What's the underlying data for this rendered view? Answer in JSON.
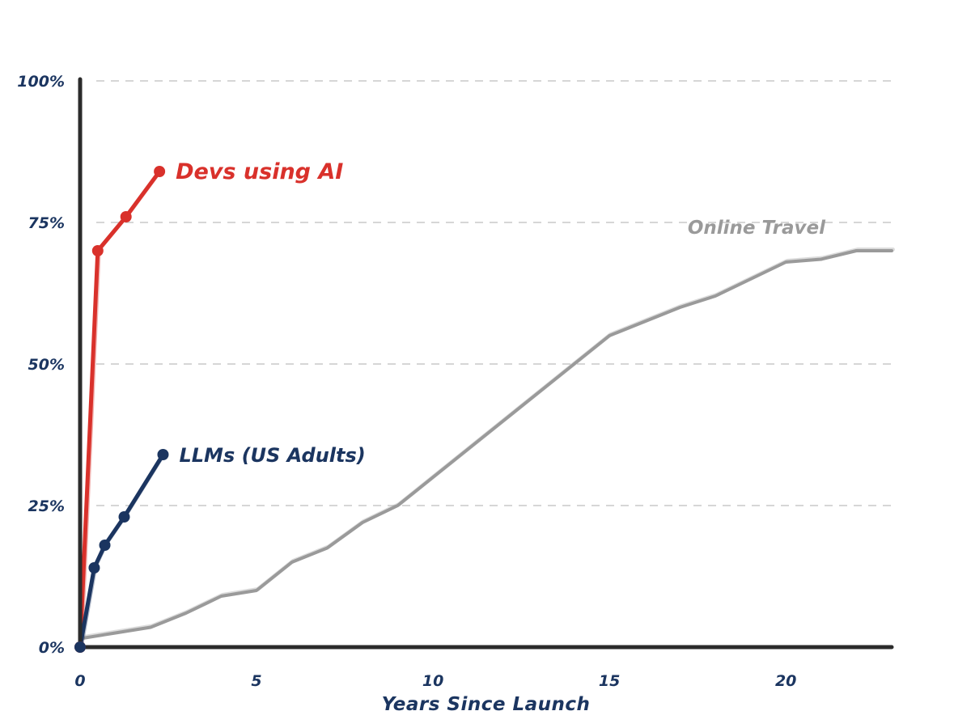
{
  "chart_data": {
    "type": "line",
    "title": "",
    "xlabel": "Years Since Launch",
    "ylabel": "",
    "xlim": [
      0,
      23
    ],
    "ylim": [
      0,
      100
    ],
    "x_ticks": [
      0,
      5,
      10,
      15,
      20
    ],
    "x_tick_labels": [
      "0",
      "5",
      "10",
      "15",
      "20"
    ],
    "y_ticks": [
      0,
      25,
      50,
      75,
      100
    ],
    "y_tick_labels": [
      "0%",
      "25%",
      "50%",
      "75%",
      "100%"
    ],
    "grid": "horizontal dashed",
    "legend": "none (direct labels)",
    "series": [
      {
        "name": "Online Travel",
        "color": "#9a9a9a",
        "markers": false,
        "x": [
          0,
          1,
          2,
          3,
          4,
          5,
          6,
          7,
          8,
          9,
          10,
          11,
          12,
          13,
          14,
          15,
          16,
          17,
          18,
          19,
          20,
          21,
          22,
          23
        ],
        "y": [
          1.5,
          2.5,
          3.5,
          6,
          9,
          10,
          15,
          17.5,
          22,
          25,
          30,
          35,
          40,
          45,
          50,
          55,
          57.5,
          60,
          62,
          65,
          68,
          68.5,
          70,
          70
        ]
      },
      {
        "name": "Devs using AI",
        "color": "#d9312b",
        "markers": true,
        "x": [
          0,
          0.5,
          1.3,
          2.25
        ],
        "y": [
          0,
          70,
          76,
          84
        ]
      },
      {
        "name": "LLMs (US Adults)",
        "color": "#1b3560",
        "markers": true,
        "x": [
          0,
          0.4,
          0.7,
          1.25,
          2.35
        ],
        "y": [
          0,
          14,
          18,
          23,
          34
        ]
      }
    ]
  },
  "colors": {
    "axis": "#2b2b2b",
    "tick_text": "#1b3560",
    "grid": "#d6d6d6"
  }
}
